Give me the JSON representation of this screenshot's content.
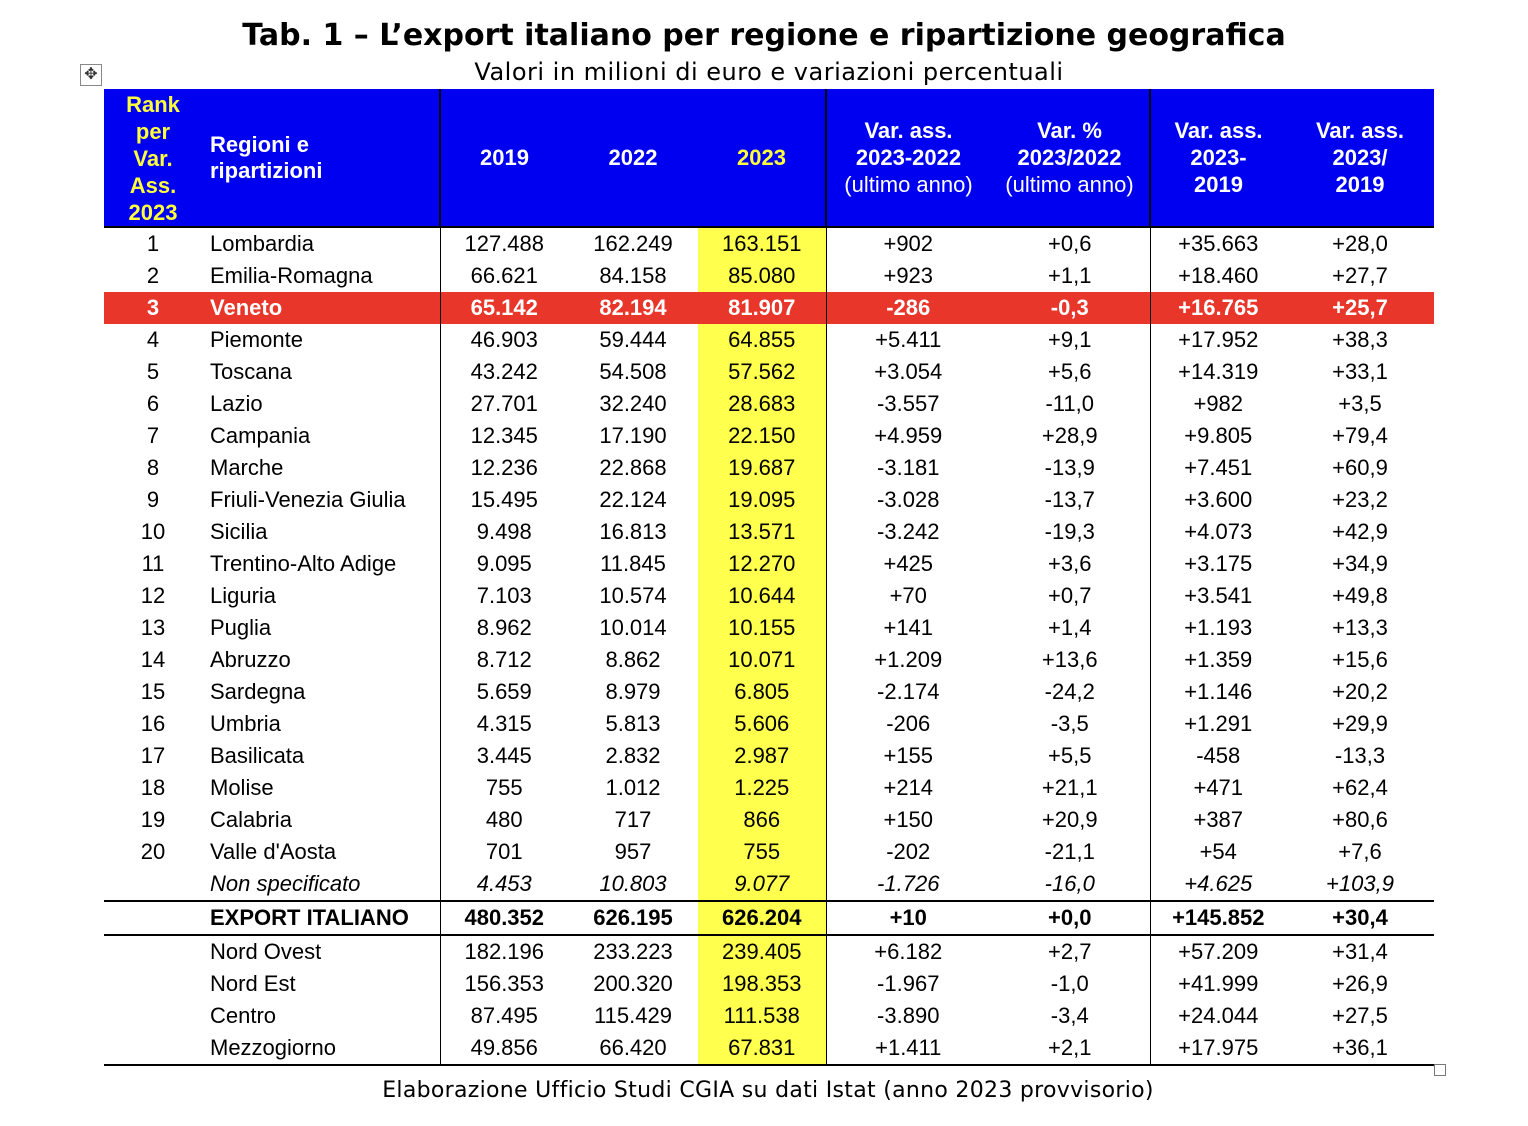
{
  "title": "Tab. 1 – L’export italiano per regione e ripartizione geografica",
  "subtitle": "Valori in milioni di euro e variazioni percentuali",
  "colors": {
    "header_bg": "#0000f0",
    "header_highlight_text": "#ffff3c",
    "col2023_bg": "#ffff4d",
    "highlight_row_bg": "#e8362b"
  },
  "icons": {
    "move_handle": "move-icon",
    "resize_handle": "resize-handle-icon"
  },
  "headers": {
    "rank": [
      "Rank",
      "per",
      "Var.",
      "Ass.",
      "2023"
    ],
    "name": [
      "Regioni e",
      "ripartizioni"
    ],
    "y2019": "2019",
    "y2022": "2022",
    "y2023": "2023",
    "var_ass": [
      "Var. ass.",
      "2023-2022",
      "(ultimo anno)"
    ],
    "var_pct": [
      "Var. %",
      "2023/2022",
      "(ultimo anno)"
    ],
    "var_ass_2019": [
      "Var. ass.",
      "2023-",
      "2019"
    ],
    "var_pct_2019": [
      "Var. ass.",
      "2023/",
      "2019"
    ]
  },
  "rows": [
    {
      "rank": "1",
      "name": "Lombardia",
      "y2019": "127.488",
      "y2022": "162.249",
      "y2023": "163.151",
      "var_ass": "+902",
      "var_pct": "+0,6",
      "var_ass_2019": "+35.663",
      "var_pct_2019": "+28,0"
    },
    {
      "rank": "2",
      "name": "Emilia-Romagna",
      "y2019": "66.621",
      "y2022": "84.158",
      "y2023": "85.080",
      "var_ass": "+923",
      "var_pct": "+1,1",
      "var_ass_2019": "+18.460",
      "var_pct_2019": "+27,7"
    },
    {
      "rank": "3",
      "name": "Veneto",
      "y2019": "65.142",
      "y2022": "82.194",
      "y2023": "81.907",
      "var_ass": "-286",
      "var_pct": "-0,3",
      "var_ass_2019": "+16.765",
      "var_pct_2019": "+25,7"
    },
    {
      "rank": "4",
      "name": "Piemonte",
      "y2019": "46.903",
      "y2022": "59.444",
      "y2023": "64.855",
      "var_ass": "+5.411",
      "var_pct": "+9,1",
      "var_ass_2019": "+17.952",
      "var_pct_2019": "+38,3"
    },
    {
      "rank": "5",
      "name": "Toscana",
      "y2019": "43.242",
      "y2022": "54.508",
      "y2023": "57.562",
      "var_ass": "+3.054",
      "var_pct": "+5,6",
      "var_ass_2019": "+14.319",
      "var_pct_2019": "+33,1"
    },
    {
      "rank": "6",
      "name": "Lazio",
      "y2019": "27.701",
      "y2022": "32.240",
      "y2023": "28.683",
      "var_ass": "-3.557",
      "var_pct": "-11,0",
      "var_ass_2019": "+982",
      "var_pct_2019": "+3,5"
    },
    {
      "rank": "7",
      "name": "Campania",
      "y2019": "12.345",
      "y2022": "17.190",
      "y2023": "22.150",
      "var_ass": "+4.959",
      "var_pct": "+28,9",
      "var_ass_2019": "+9.805",
      "var_pct_2019": "+79,4"
    },
    {
      "rank": "8",
      "name": "Marche",
      "y2019": "12.236",
      "y2022": "22.868",
      "y2023": "19.687",
      "var_ass": "-3.181",
      "var_pct": "-13,9",
      "var_ass_2019": "+7.451",
      "var_pct_2019": "+60,9"
    },
    {
      "rank": "9",
      "name": "Friuli-Venezia Giulia",
      "y2019": "15.495",
      "y2022": "22.124",
      "y2023": "19.095",
      "var_ass": "-3.028",
      "var_pct": "-13,7",
      "var_ass_2019": "+3.600",
      "var_pct_2019": "+23,2"
    },
    {
      "rank": "10",
      "name": "Sicilia",
      "y2019": "9.498",
      "y2022": "16.813",
      "y2023": "13.571",
      "var_ass": "-3.242",
      "var_pct": "-19,3",
      "var_ass_2019": "+4.073",
      "var_pct_2019": "+42,9"
    },
    {
      "rank": "11",
      "name": "Trentino-Alto Adige",
      "y2019": "9.095",
      "y2022": "11.845",
      "y2023": "12.270",
      "var_ass": "+425",
      "var_pct": "+3,6",
      "var_ass_2019": "+3.175",
      "var_pct_2019": "+34,9"
    },
    {
      "rank": "12",
      "name": "Liguria",
      "y2019": "7.103",
      "y2022": "10.574",
      "y2023": "10.644",
      "var_ass": "+70",
      "var_pct": "+0,7",
      "var_ass_2019": "+3.541",
      "var_pct_2019": "+49,8"
    },
    {
      "rank": "13",
      "name": "Puglia",
      "y2019": "8.962",
      "y2022": "10.014",
      "y2023": "10.155",
      "var_ass": "+141",
      "var_pct": "+1,4",
      "var_ass_2019": "+1.193",
      "var_pct_2019": "+13,3"
    },
    {
      "rank": "14",
      "name": "Abruzzo",
      "y2019": "8.712",
      "y2022": "8.862",
      "y2023": "10.071",
      "var_ass": "+1.209",
      "var_pct": "+13,6",
      "var_ass_2019": "+1.359",
      "var_pct_2019": "+15,6"
    },
    {
      "rank": "15",
      "name": "Sardegna",
      "y2019": "5.659",
      "y2022": "8.979",
      "y2023": "6.805",
      "var_ass": "-2.174",
      "var_pct": "-24,2",
      "var_ass_2019": "+1.146",
      "var_pct_2019": "+20,2"
    },
    {
      "rank": "16",
      "name": "Umbria",
      "y2019": "4.315",
      "y2022": "5.813",
      "y2023": "5.606",
      "var_ass": "-206",
      "var_pct": "-3,5",
      "var_ass_2019": "+1.291",
      "var_pct_2019": "+29,9"
    },
    {
      "rank": "17",
      "name": "Basilicata",
      "y2019": "3.445",
      "y2022": "2.832",
      "y2023": "2.987",
      "var_ass": "+155",
      "var_pct": "+5,5",
      "var_ass_2019": "-458",
      "var_pct_2019": "-13,3"
    },
    {
      "rank": "18",
      "name": "Molise",
      "y2019": "755",
      "y2022": "1.012",
      "y2023": "1.225",
      "var_ass": "+214",
      "var_pct": "+21,1",
      "var_ass_2019": "+471",
      "var_pct_2019": "+62,4"
    },
    {
      "rank": "19",
      "name": "Calabria",
      "y2019": "480",
      "y2022": "717",
      "y2023": "866",
      "var_ass": "+150",
      "var_pct": "+20,9",
      "var_ass_2019": "+387",
      "var_pct_2019": "+80,6"
    },
    {
      "rank": "20",
      "name": "Valle d'Aosta",
      "y2019": "701",
      "y2022": "957",
      "y2023": "755",
      "var_ass": "-202",
      "var_pct": "-21,1",
      "var_ass_2019": "+54",
      "var_pct_2019": "+7,6"
    },
    {
      "rank": "",
      "name": "Non specificato",
      "y2019": "4.453",
      "y2022": "10.803",
      "y2023": "9.077",
      "var_ass": "-1.726",
      "var_pct": "-16,0",
      "var_ass_2019": "+4.625",
      "var_pct_2019": "+103,9"
    },
    {
      "rank": "",
      "name": "EXPORT ITALIANO",
      "y2019": "480.352",
      "y2022": "626.195",
      "y2023": "626.204",
      "var_ass": "+10",
      "var_pct": "+0,0",
      "var_ass_2019": "+145.852",
      "var_pct_2019": "+30,4"
    },
    {
      "rank": "",
      "name": "Nord Ovest",
      "y2019": "182.196",
      "y2022": "233.223",
      "y2023": "239.405",
      "var_ass": "+6.182",
      "var_pct": "+2,7",
      "var_ass_2019": "+57.209",
      "var_pct_2019": "+31,4"
    },
    {
      "rank": "",
      "name": "Nord Est",
      "y2019": "156.353",
      "y2022": "200.320",
      "y2023": "198.353",
      "var_ass": "-1.967",
      "var_pct": "-1,0",
      "var_ass_2019": "+41.999",
      "var_pct_2019": "+26,9"
    },
    {
      "rank": "",
      "name": "Centro",
      "y2019": "87.495",
      "y2022": "115.429",
      "y2023": "111.538",
      "var_ass": "-3.890",
      "var_pct": "-3,4",
      "var_ass_2019": "+24.044",
      "var_pct_2019": "+27,5"
    },
    {
      "rank": "",
      "name": "Mezzogiorno",
      "y2019": "49.856",
      "y2022": "66.420",
      "y2023": "67.831",
      "var_ass": "+1.411",
      "var_pct": "+2,1",
      "var_ass_2019": "+17.975",
      "var_pct_2019": "+36,1"
    }
  ],
  "source": "Elaborazione Ufficio Studi CGIA su dati Istat (anno 2023 provvisorio)"
}
